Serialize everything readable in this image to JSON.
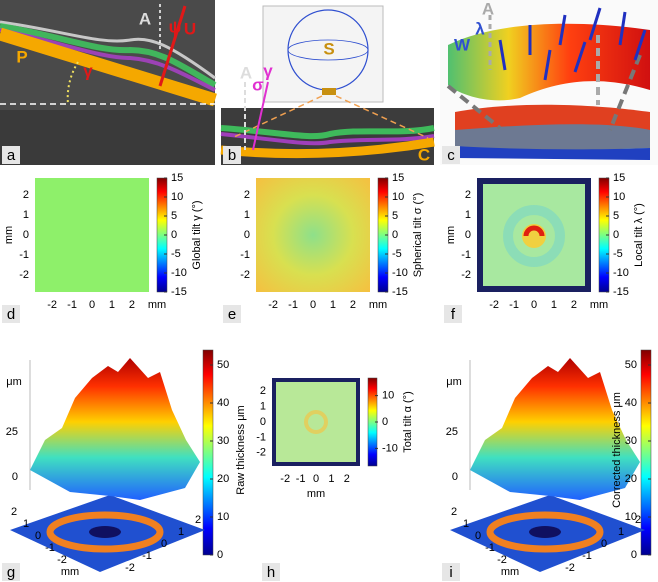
{
  "panel_a": {
    "letter": "a",
    "labels": [
      "A",
      "ψ",
      "U",
      "P",
      "γ"
    ]
  },
  "panel_b": {
    "letter": "b",
    "labels": [
      "S",
      "A",
      "γ",
      "σ",
      "C"
    ]
  },
  "panel_c": {
    "letter": "c",
    "labels": [
      "A",
      "λ",
      "W"
    ]
  },
  "panel_d": {
    "letter": "d",
    "colorbar_label": "Global tilt γ (°)",
    "colorbar_ticks": [
      15,
      10,
      5,
      0,
      -5,
      -10,
      -15
    ],
    "x_ticks": [
      -2,
      -1,
      0,
      1,
      2
    ],
    "x_unit": "mm",
    "y_ticks": [
      2,
      1,
      0,
      -1,
      -2
    ],
    "y_unit": "mm"
  },
  "panel_e": {
    "letter": "e",
    "colorbar_label": "Spherical tilt σ (°)",
    "colorbar_ticks": [
      15,
      10,
      5,
      0,
      -5,
      -10,
      -15
    ],
    "x_ticks": [
      -2,
      -1,
      0,
      1,
      2
    ],
    "x_unit": "mm",
    "y_ticks": [
      2,
      1,
      0,
      -1,
      -2
    ],
    "y_unit": "mm"
  },
  "panel_f": {
    "letter": "f",
    "colorbar_label": "Local tilt λ (°)",
    "colorbar_ticks": [
      15,
      10,
      5,
      0,
      -5,
      -10,
      -15
    ],
    "x_ticks": [
      -2,
      -1,
      0,
      1,
      2
    ],
    "x_unit": "mm",
    "y_ticks": [
      2,
      1,
      0,
      -1,
      -2
    ],
    "y_unit": "mm"
  },
  "panel_g": {
    "letter": "g",
    "colorbar_label": "Raw thickness μm",
    "colorbar_ticks": [
      50,
      40,
      30,
      20,
      10,
      0
    ],
    "z_unit": "μm",
    "z_ticks": [
      25,
      0
    ],
    "base_left_ticks": [
      2,
      1,
      0,
      -1,
      -2
    ],
    "base_unit": "mm",
    "base_right_ticks": [
      -2,
      -1,
      0,
      1,
      2
    ]
  },
  "panel_h": {
    "letter": "h",
    "colorbar_label": "Total tilt α (°)",
    "colorbar_ticks": [
      10,
      0,
      -10
    ],
    "x_ticks": [
      -2,
      -1,
      0,
      1,
      2
    ],
    "x_unit": "mm",
    "y_ticks": [
      2,
      1,
      0,
      -1,
      -2
    ]
  },
  "panel_i": {
    "letter": "i",
    "colorbar_label": "Corrected thickness μm",
    "colorbar_ticks": [
      50,
      40,
      30,
      20,
      10,
      0
    ],
    "z_unit": "μm",
    "z_ticks": [
      25,
      0
    ],
    "base_left_ticks": [
      2,
      1,
      0,
      -1,
      -2
    ],
    "base_unit": "mm",
    "base_right_ticks": [
      -2,
      -1,
      0,
      1,
      2
    ]
  }
}
